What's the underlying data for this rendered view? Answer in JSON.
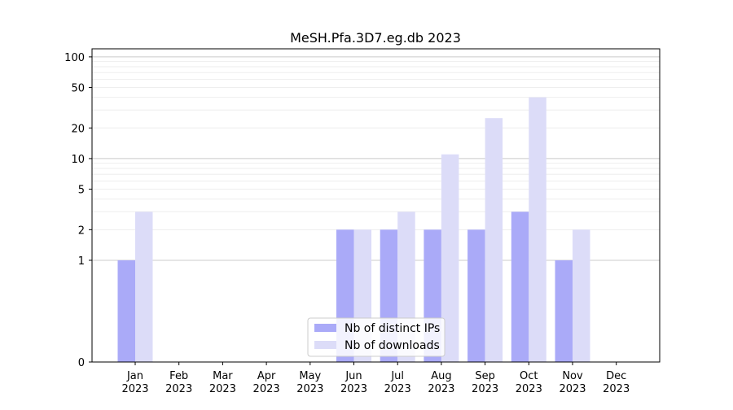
{
  "chart_data": {
    "type": "bar",
    "title": "MeSH.Pfa.3D7.eg.db 2023",
    "xlabel": "",
    "ylabel": "",
    "y_scale": "symlog",
    "ylim": [
      0,
      120
    ],
    "y_ticks": [
      0,
      1,
      2,
      5,
      10,
      20,
      50,
      100
    ],
    "y_tick_labels": [
      "0",
      "1",
      "2",
      "5",
      "10",
      "20",
      "50",
      "100"
    ],
    "categories": [
      "Jan",
      "Feb",
      "Mar",
      "Apr",
      "May",
      "Jun",
      "Jul",
      "Aug",
      "Sep",
      "Oct",
      "Nov",
      "Dec"
    ],
    "category_years": [
      "2023",
      "2023",
      "2023",
      "2023",
      "2023",
      "2023",
      "2023",
      "2023",
      "2023",
      "2023",
      "2023",
      "2023"
    ],
    "series": [
      {
        "name": "Nb of distinct IPs",
        "color": "#aaaaf8",
        "values": [
          1,
          0,
          0,
          0,
          0,
          2,
          2,
          2,
          2,
          3,
          1,
          0
        ]
      },
      {
        "name": "Nb of downloads",
        "color": "#dcdcf8",
        "values": [
          3,
          0,
          0,
          0,
          0,
          2,
          3,
          11,
          25,
          40,
          2,
          0
        ]
      }
    ],
    "grid": true,
    "legend_position": "bottom-center"
  }
}
